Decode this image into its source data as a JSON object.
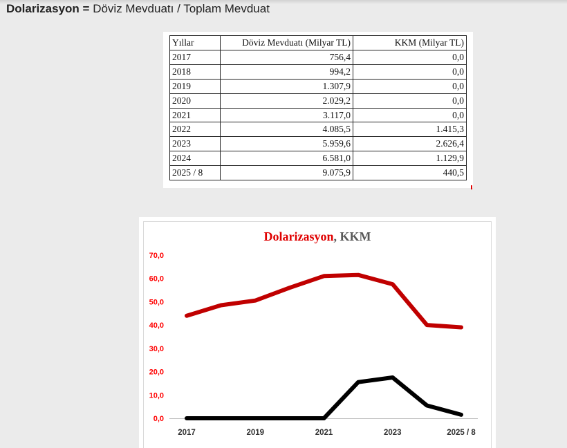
{
  "heading": {
    "bold": "Dolarizasyon =",
    "rest": " Döviz Mevduatı / Toplam Mevduat"
  },
  "table": {
    "headers": [
      "Yıllar",
      "Döviz Mevduatı (Milyar TL)",
      "KKM (Milyar TL)"
    ],
    "rows": [
      [
        "2017",
        "756,4",
        "0,0"
      ],
      [
        "2018",
        "994,2",
        "0,0"
      ],
      [
        "2019",
        "1.307,9",
        "0,0"
      ],
      [
        "2020",
        "2.029,2",
        "0,0"
      ],
      [
        "2021",
        "3.117,0",
        "0,0"
      ],
      [
        "2022",
        "4.085,5",
        "1.415,3"
      ],
      [
        "2023",
        "5.959,6",
        "2.626,4"
      ],
      [
        "2024",
        "6.581,0",
        "1.129,9"
      ],
      [
        "2025 / 8",
        "9.075,9",
        "440,5"
      ]
    ]
  },
  "chart_data": {
    "type": "line",
    "title_parts": [
      {
        "text": "Dolarizasyon",
        "color": "#e00000"
      },
      {
        "text": ", KKM",
        "color": "#595959"
      }
    ],
    "categories": [
      "2017",
      "2018",
      "2019",
      "2020",
      "2021",
      "2022",
      "2023",
      "2024",
      "2025 / 8"
    ],
    "x_tick_labels": [
      "2017",
      "2019",
      "2021",
      "2023",
      "2025 / 8"
    ],
    "y_ticks": [
      "0,0",
      "10,0",
      "20,0",
      "30,0",
      "40,0",
      "50,0",
      "60,0",
      "70,0"
    ],
    "ylim": [
      0,
      70
    ],
    "grid": false,
    "series": [
      {
        "name": "Dolarizasyon",
        "color": "#c00000",
        "values": [
          44.0,
          48.5,
          50.5,
          56.0,
          61.0,
          61.5,
          57.5,
          40.0,
          39.0
        ]
      },
      {
        "name": "KKM",
        "color": "#000000",
        "values": [
          0,
          0,
          0,
          0,
          0,
          15.5,
          17.5,
          5.5,
          1.5
        ]
      }
    ]
  }
}
